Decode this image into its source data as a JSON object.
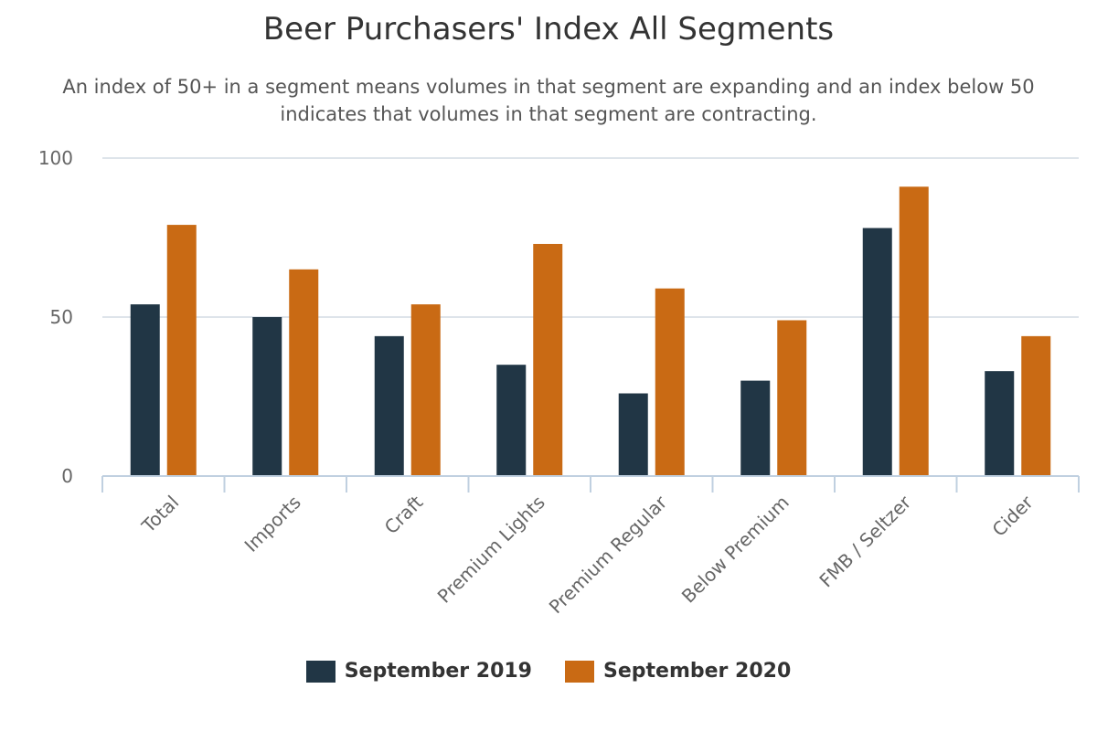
{
  "chart_data": {
    "type": "bar",
    "title": "Beer Purchasers' Index All Segments",
    "subtitle": "An index of 50+ in a segment means volumes in that segment are expanding and an index below 50 indicates that volumes in that segment are contracting.",
    "categories": [
      "Total",
      "Imports",
      "Craft",
      "Premium Lights",
      "Premium Regular",
      "Below Premium",
      "FMB / Seltzer",
      "Cider"
    ],
    "series": [
      {
        "name": "September 2019",
        "color": "#213645",
        "values": [
          54,
          50,
          44,
          35,
          26,
          30,
          78,
          33
        ]
      },
      {
        "name": "September 2020",
        "color": "#c96a14",
        "values": [
          79,
          65,
          54,
          73,
          59,
          49,
          91,
          44
        ]
      }
    ],
    "yticks": [
      0,
      50,
      100
    ],
    "ylim": [
      0,
      100
    ],
    "xlabel": "",
    "ylabel": "",
    "grid": true,
    "legend_position": "bottom-center"
  }
}
